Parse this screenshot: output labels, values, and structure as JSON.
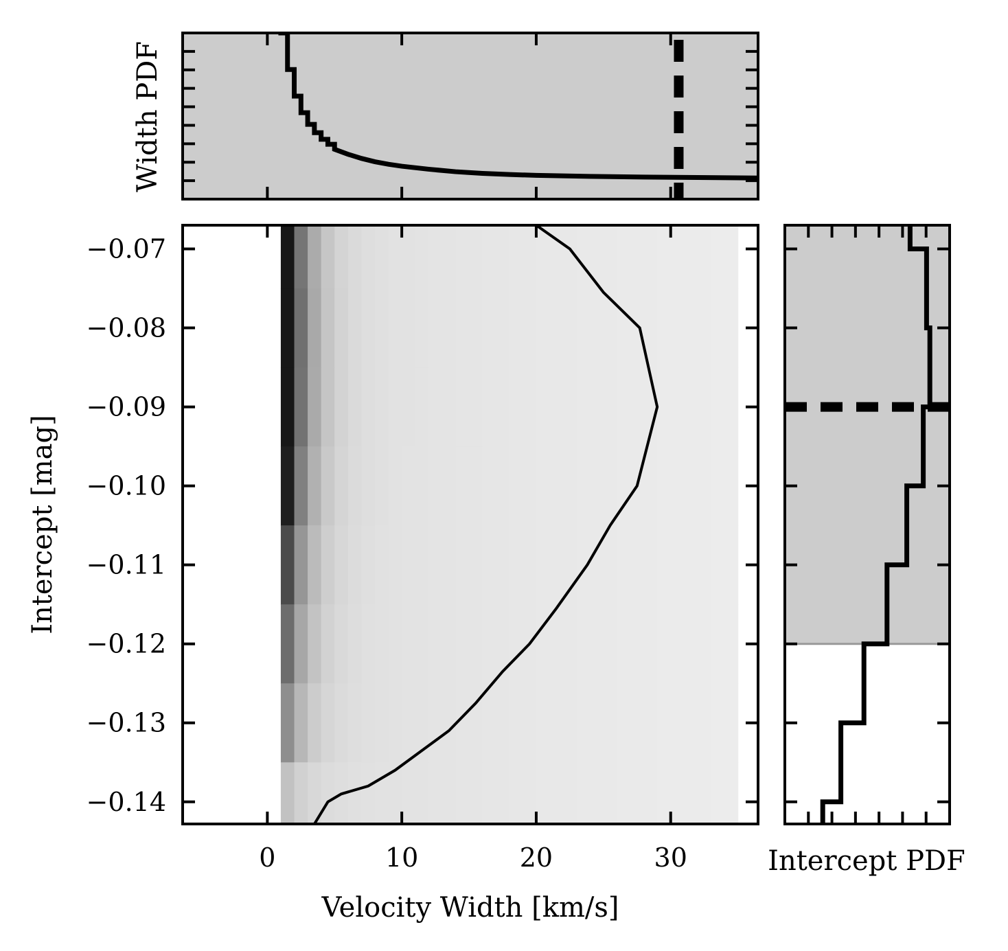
{
  "chart_data": {
    "type": "heatmap",
    "xlabel": "Velocity Width [km/s]",
    "ylabel": "Intercept [mag]",
    "top_panel_ylabel": "Width PDF",
    "right_panel_xlabel": "Intercept PDF",
    "xlim": [
      -6.3,
      36.5
    ],
    "ylim": [
      -0.1428,
      -0.067
    ],
    "x_ticks": [
      0,
      10,
      20,
      30
    ],
    "x_tick_labels": [
      "0",
      "10",
      "20",
      "30"
    ],
    "y_ticks": [
      -0.07,
      -0.08,
      -0.09,
      -0.1,
      -0.11,
      -0.12,
      -0.13,
      -0.14
    ],
    "y_tick_labels": [
      "−0.07",
      "−0.08",
      "−0.09",
      "−0.10",
      "−0.11",
      "−0.12",
      "−0.13",
      "−0.14"
    ],
    "colormap": "greys",
    "background_color": "#cccccc",
    "grid": false,
    "heatmap": {
      "x_start": 1.0,
      "x_end": 35.0,
      "row_centers": [
        -0.07,
        -0.08,
        -0.09,
        -0.1,
        -0.11,
        -0.12,
        -0.13,
        -0.14
      ],
      "row_peak_intensity": [
        0.95,
        1.0,
        0.98,
        0.85,
        0.65,
        0.5,
        0.35,
        0.12
      ]
    },
    "contour_line": {
      "x": [
        3.5,
        4.5,
        5.5,
        7.5,
        9.5,
        11.5,
        13.5,
        15.5,
        17.5,
        19.5,
        21.5,
        23.8,
        25.5,
        27.5,
        29.0,
        27.7,
        25.0,
        22.5,
        20.0
      ],
      "y": [
        -0.1428,
        -0.14,
        -0.139,
        -0.138,
        -0.136,
        -0.1335,
        -0.131,
        -0.1275,
        -0.1235,
        -0.12,
        -0.1155,
        -0.11,
        -0.105,
        -0.1,
        -0.09,
        -0.08,
        -0.0755,
        -0.07,
        -0.067
      ]
    },
    "width_pdf": {
      "x": [
        1.0,
        1.5,
        2.0,
        2.5,
        3.0,
        3.5,
        4.0,
        4.5,
        5.0,
        6.0,
        7.0,
        8.0,
        9.0,
        10.0,
        12.0,
        14.0,
        16.0,
        18.0,
        20.0,
        24.0,
        28.0,
        32.0,
        36.5
      ],
      "y": [
        1.0,
        0.78,
        0.62,
        0.52,
        0.45,
        0.4,
        0.36,
        0.33,
        0.3,
        0.27,
        0.245,
        0.225,
        0.21,
        0.198,
        0.18,
        0.165,
        0.155,
        0.148,
        0.143,
        0.137,
        0.133,
        0.13,
        0.127
      ],
      "ylim": [
        0,
        1.0
      ],
      "dashed_x": 30.6
    },
    "intercept_pdf": {
      "bins": [
        -0.065,
        -0.07,
        -0.08,
        -0.09,
        -0.1,
        -0.11,
        -0.12,
        -0.13,
        -0.14,
        -0.145
      ],
      "values": [
        0.76,
        0.86,
        0.88,
        0.84,
        0.74,
        0.62,
        0.48,
        0.34,
        0.23
      ],
      "xlim": [
        0,
        1.0
      ],
      "shaded_above_y": -0.12,
      "dashed_y": -0.09
    }
  }
}
